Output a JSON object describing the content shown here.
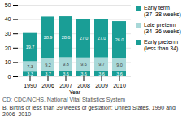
{
  "chart_data": {
    "type": "bar",
    "stacked": true,
    "title": "B.  Births of less than 39 weeks of gestation; United States, 1990 and 2006–2010",
    "annotations": [
      "CD: CDC/NCHS, National Vital Statistics System"
    ],
    "x_label": "Year",
    "categories": [
      "1990",
      "2006",
      "2007",
      "2008",
      "2009",
      "2010"
    ],
    "series": [
      {
        "name": "Early preterm\n(less than 34)",
        "color": "#1a9e96",
        "values": [
          3.3,
          3.7,
          3.6,
          3.6,
          3.6,
          3.6
        ]
      },
      {
        "name": "Late preterm\n(34–36 weeks)",
        "color": "#a8d8d8",
        "values": [
          7.3,
          9.2,
          9.8,
          9.6,
          9.7,
          9.0
        ],
        "value_labels": [
          "7.3",
          "9.2",
          "9.8",
          "9.6",
          "9.7",
          "9.0"
        ]
      },
      {
        "name": "Early term\n(37–38 weeks)",
        "color": "#1a9e96",
        "values": [
          19.7,
          28.9,
          28.6,
          27.0,
          27.0,
          26.0
        ],
        "value_labels": [
          "19.7",
          "28.9",
          "28.6",
          "27.0",
          "27.0",
          "26.0"
        ]
      }
    ],
    "ylim": [
      0,
      50
    ],
    "yticks": [
      0,
      10,
      20,
      30,
      40,
      50
    ],
    "grid": true,
    "data_labels": true,
    "legend": "right"
  }
}
